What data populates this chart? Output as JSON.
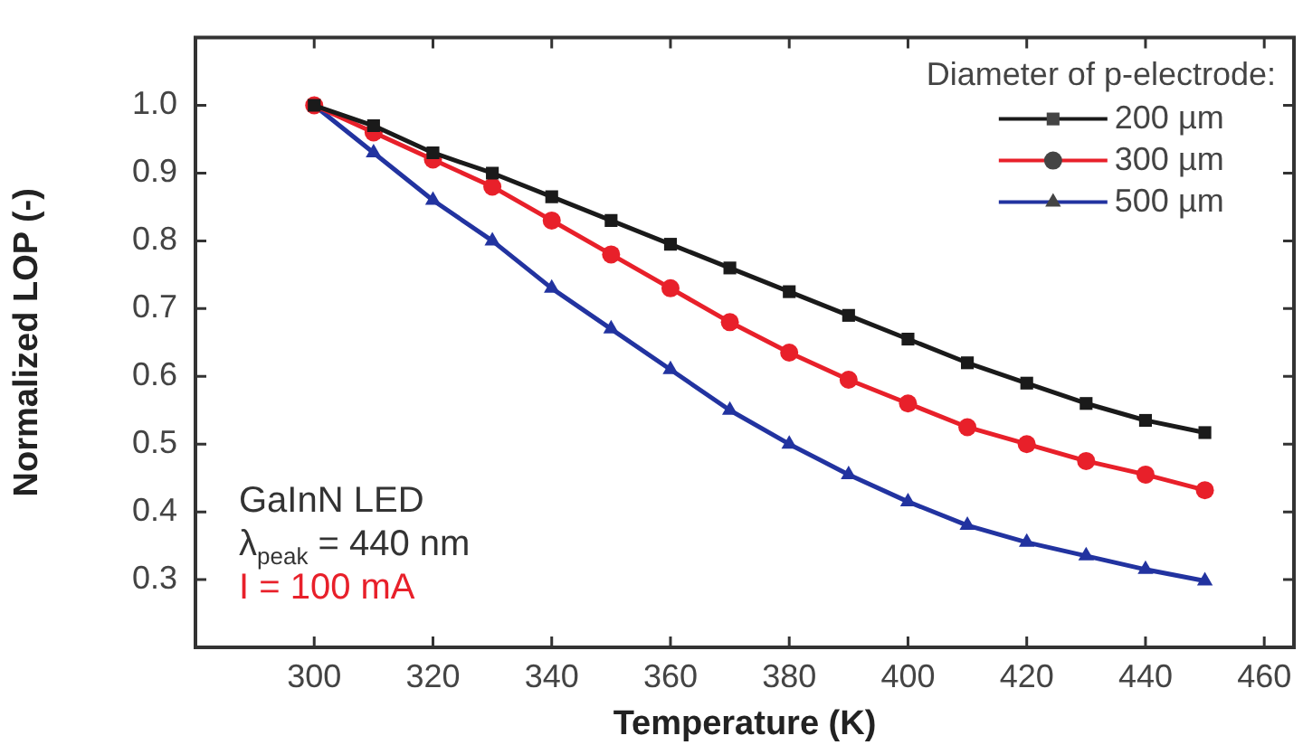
{
  "chart_data": {
    "type": "line",
    "xlabel": "Temperature (K)",
    "ylabel": "Normalized LOP (-)",
    "legend_title": "Diameter of p-electrode:",
    "legend": "top right",
    "grid": false,
    "x": [
      300,
      310,
      320,
      330,
      340,
      350,
      360,
      370,
      380,
      390,
      400,
      410,
      420,
      430,
      440,
      450
    ],
    "xlim": [
      280,
      465
    ],
    "xticks": [
      300,
      320,
      340,
      360,
      380,
      400,
      420,
      440,
      460
    ],
    "ylim": [
      0.2,
      1.1
    ],
    "yticks": [
      0.3,
      0.4,
      0.5,
      0.6,
      0.7,
      0.8,
      0.9,
      {
        "value": 1.0,
        "label": "1.0"
      }
    ],
    "series": [
      {
        "name": "200 µm",
        "color": "#1a1a1a",
        "marker": "square",
        "values": [
          1.0,
          0.97,
          0.93,
          0.9,
          0.865,
          0.83,
          0.795,
          0.76,
          0.725,
          0.69,
          0.655,
          0.62,
          0.59,
          0.56,
          0.535,
          0.517
        ]
      },
      {
        "name": "300 µm",
        "color": "#e8202a",
        "marker": "circle",
        "values": [
          1.0,
          0.96,
          0.92,
          0.88,
          0.83,
          0.78,
          0.73,
          0.68,
          0.635,
          0.595,
          0.56,
          0.525,
          0.5,
          0.475,
          0.455,
          0.432
        ]
      },
      {
        "name": "500 µm",
        "color": "#2233a0",
        "marker": "triangle",
        "values": [
          1.0,
          0.93,
          0.86,
          0.8,
          0.73,
          0.67,
          0.61,
          0.55,
          0.5,
          0.455,
          0.415,
          0.38,
          0.355,
          0.335,
          0.315,
          0.298
        ]
      }
    ],
    "annotations": [
      "GaInN LED",
      "λ$_{peak}$ = 440 nm",
      "I = 100 mA"
    ]
  }
}
